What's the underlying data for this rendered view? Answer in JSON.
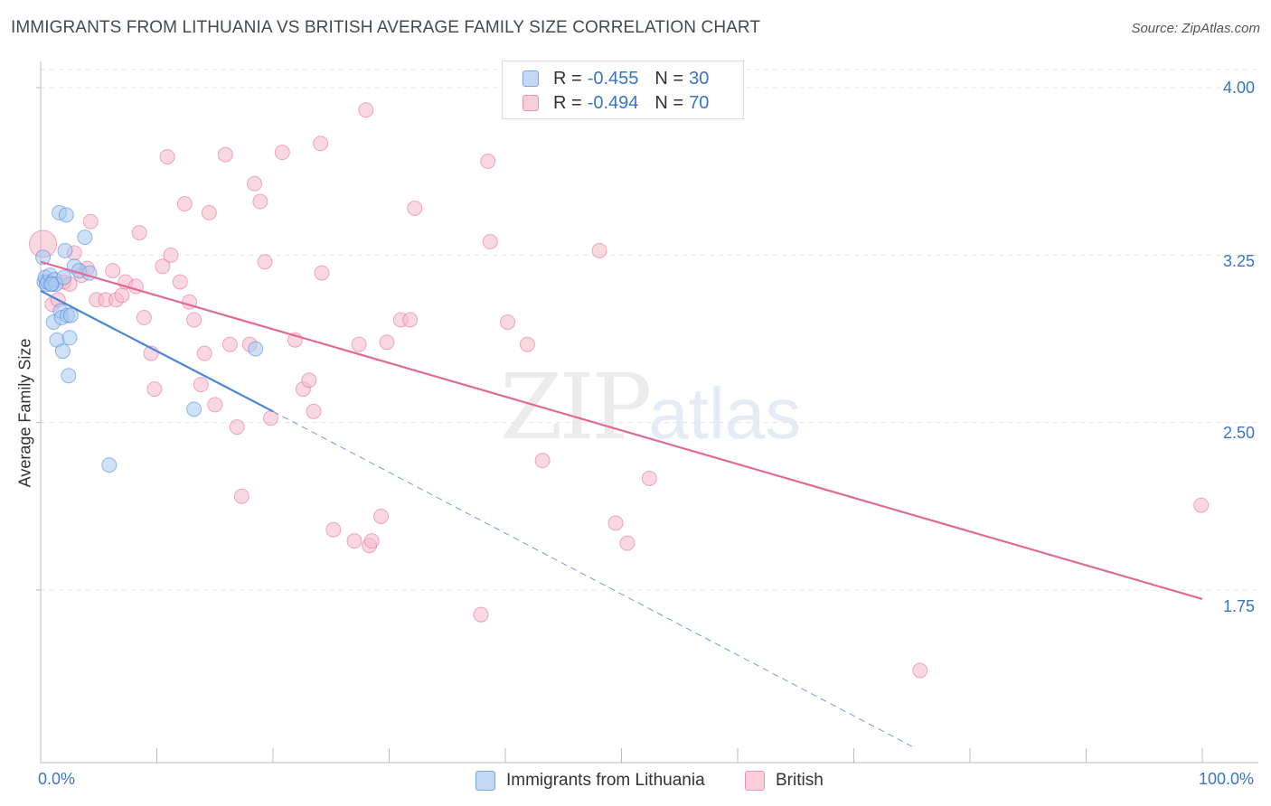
{
  "header": {
    "title": "IMMIGRANTS FROM LITHUANIA VS BRITISH AVERAGE FAMILY SIZE CORRELATION CHART",
    "source": "Source: ZipAtlas.com"
  },
  "watermark": {
    "zip": "ZIP",
    "atlas": "atlas"
  },
  "legend": {
    "rows": [
      {
        "r_label": "R =",
        "r_value": "-0.455",
        "n_label": "N =",
        "n_value": "30",
        "color": "#a8c8f0"
      },
      {
        "r_label": "R =",
        "r_value": "-0.494",
        "n_label": "N =",
        "n_value": "70",
        "color": "#f6b8cb"
      }
    ]
  },
  "bottom_legend": {
    "items": [
      {
        "label": "Immigrants from Lithuania",
        "color": "#a8c8f0"
      },
      {
        "label": "British",
        "color": "#f6b8cb"
      }
    ]
  },
  "chart_data": {
    "type": "scatter",
    "title": "IMMIGRANTS FROM LITHUANIA VS BRITISH AVERAGE FAMILY SIZE CORRELATION CHART",
    "xlabel": "",
    "ylabel": "Average Family Size",
    "xlim": [
      0,
      100
    ],
    "ylim": [
      1.0,
      4.1
    ],
    "x_tick_labels": [
      "0.0%",
      "100.0%"
    ],
    "y_ticks": [
      1.75,
      2.5,
      3.25,
      4.0
    ],
    "y_tick_labels": [
      "1.75",
      "2.50",
      "3.25",
      "4.00"
    ],
    "grid": true,
    "legend_position": "top-center",
    "series": [
      {
        "name": "Immigrants from Lithuania",
        "color": "#4a86d8",
        "fill": "#a8c8f0",
        "points": [
          [
            0.2,
            3.24
          ],
          [
            0.3,
            3.13
          ],
          [
            0.4,
            3.15
          ],
          [
            0.5,
            3.12
          ],
          [
            0.6,
            3.13
          ],
          [
            0.8,
            3.16
          ],
          [
            1.0,
            3.12
          ],
          [
            1.2,
            3.14
          ],
          [
            1.3,
            3.12
          ],
          [
            1.1,
            2.95
          ],
          [
            1.4,
            2.87
          ],
          [
            1.6,
            3.44
          ],
          [
            1.7,
            3.0
          ],
          [
            1.8,
            2.97
          ],
          [
            1.9,
            2.82
          ],
          [
            2.0,
            3.15
          ],
          [
            2.1,
            3.27
          ],
          [
            2.2,
            3.43
          ],
          [
            2.3,
            2.98
          ],
          [
            2.4,
            2.71
          ],
          [
            2.5,
            2.88
          ],
          [
            2.6,
            2.98
          ],
          [
            2.9,
            3.2
          ],
          [
            3.3,
            3.18
          ],
          [
            3.8,
            3.33
          ],
          [
            4.2,
            3.17
          ],
          [
            5.9,
            2.31
          ],
          [
            13.2,
            2.56
          ],
          [
            18.5,
            2.83
          ],
          [
            0.9,
            3.12
          ]
        ],
        "trend": {
          "x": [
            0,
            20
          ],
          "y": [
            3.09,
            2.55
          ]
        },
        "trend_extension": {
          "x": [
            20,
            75
          ],
          "y": [
            2.55,
            1.05
          ]
        }
      },
      {
        "name": "British",
        "color": "#e26b94",
        "fill": "#f6b8cb",
        "points": [
          [
            0.2,
            3.3
          ],
          [
            1.0,
            3.03
          ],
          [
            1.5,
            3.05
          ],
          [
            2.0,
            3.13
          ],
          [
            2.5,
            3.12
          ],
          [
            2.9,
            3.26
          ],
          [
            3.5,
            3.16
          ],
          [
            4.0,
            3.19
          ],
          [
            4.3,
            3.4
          ],
          [
            4.8,
            3.05
          ],
          [
            5.6,
            3.05
          ],
          [
            6.2,
            3.18
          ],
          [
            6.5,
            3.05
          ],
          [
            7.0,
            3.07
          ],
          [
            7.3,
            3.13
          ],
          [
            8.2,
            3.11
          ],
          [
            8.5,
            3.35
          ],
          [
            8.9,
            2.97
          ],
          [
            9.5,
            2.81
          ],
          [
            9.8,
            2.65
          ],
          [
            10.5,
            3.2
          ],
          [
            10.9,
            3.69
          ],
          [
            11.2,
            3.25
          ],
          [
            12.0,
            3.13
          ],
          [
            12.4,
            3.48
          ],
          [
            12.8,
            3.04
          ],
          [
            13.2,
            2.96
          ],
          [
            13.8,
            2.67
          ],
          [
            14.1,
            2.81
          ],
          [
            14.5,
            3.44
          ],
          [
            15.0,
            2.58
          ],
          [
            15.9,
            3.7
          ],
          [
            16.3,
            2.85
          ],
          [
            16.9,
            2.48
          ],
          [
            17.3,
            2.17
          ],
          [
            18.0,
            2.85
          ],
          [
            18.4,
            3.57
          ],
          [
            18.9,
            3.49
          ],
          [
            19.3,
            3.22
          ],
          [
            19.8,
            2.52
          ],
          [
            20.8,
            3.71
          ],
          [
            21.9,
            2.87
          ],
          [
            22.6,
            2.65
          ],
          [
            23.1,
            2.69
          ],
          [
            23.5,
            2.55
          ],
          [
            24.1,
            3.75
          ],
          [
            24.2,
            3.17
          ],
          [
            25.2,
            2.02
          ],
          [
            27.0,
            1.97
          ],
          [
            27.4,
            2.85
          ],
          [
            28.0,
            3.9
          ],
          [
            28.3,
            1.95
          ],
          [
            28.5,
            1.97
          ],
          [
            29.3,
            2.08
          ],
          [
            29.8,
            2.86
          ],
          [
            31.0,
            2.96
          ],
          [
            31.8,
            2.96
          ],
          [
            32.2,
            3.46
          ],
          [
            37.9,
            1.64
          ],
          [
            38.5,
            3.67
          ],
          [
            38.7,
            3.31
          ],
          [
            40.2,
            2.95
          ],
          [
            41.9,
            2.85
          ],
          [
            43.2,
            2.33
          ],
          [
            48.1,
            3.27
          ],
          [
            49.5,
            2.05
          ],
          [
            50.5,
            1.96
          ],
          [
            52.4,
            2.25
          ],
          [
            75.7,
            1.39
          ],
          [
            99.9,
            2.13
          ]
        ],
        "trend": {
          "x": [
            0,
            100
          ],
          "y": [
            3.22,
            1.71
          ]
        }
      }
    ]
  }
}
